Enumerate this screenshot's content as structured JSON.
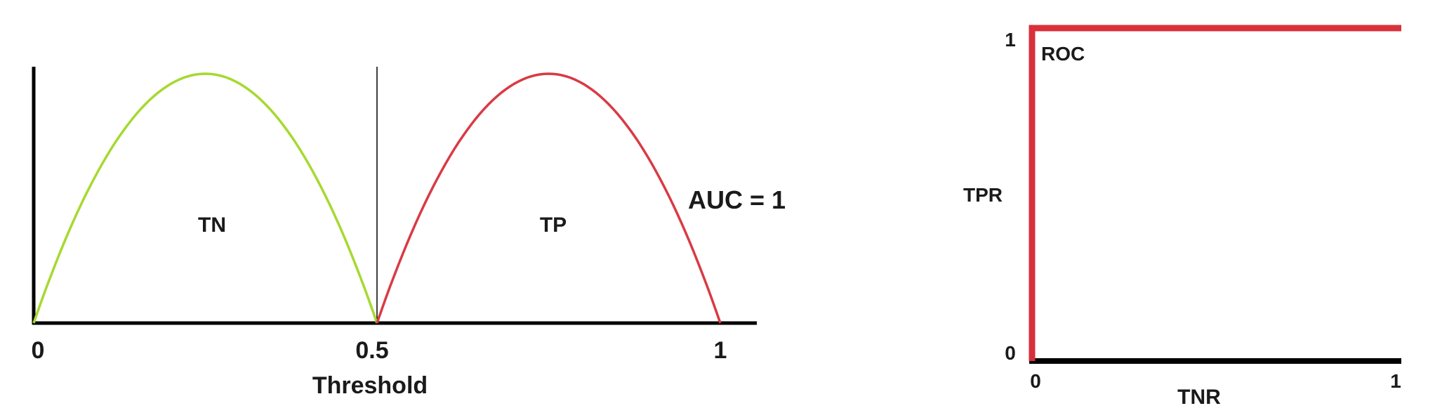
{
  "colors": {
    "tn_curve": "#a6d930",
    "tp_curve": "#d93a44",
    "roc_curve": "#d9303b",
    "axis": "#000000",
    "text": "#1a1a1a"
  },
  "chart_data": [
    {
      "type": "line",
      "title": "",
      "xlabel": "Threshold",
      "ylabel": "",
      "xlim": [
        0,
        1.05
      ],
      "ticks": [
        "0",
        "0.5",
        "1"
      ],
      "threshold_line": 0.5,
      "annotation": "AUC = 1",
      "series": [
        {
          "name": "TN",
          "x": [
            0,
            0.25,
            0.5
          ],
          "y": [
            0,
            1,
            0
          ],
          "shape": "parabola"
        },
        {
          "name": "TP",
          "x": [
            0.5,
            0.75,
            1.0
          ],
          "y": [
            0,
            1,
            0
          ],
          "shape": "parabola"
        }
      ]
    },
    {
      "type": "line",
      "title": "ROC",
      "xlabel": "TNR",
      "ylabel": "TPR",
      "xlim": [
        0,
        1
      ],
      "ylim": [
        0,
        1
      ],
      "xticks": [
        "0",
        "1"
      ],
      "yticks": [
        "0",
        "1"
      ],
      "series": [
        {
          "name": "",
          "x": [
            0,
            0,
            1
          ],
          "y": [
            0,
            1,
            1
          ]
        }
      ]
    }
  ]
}
